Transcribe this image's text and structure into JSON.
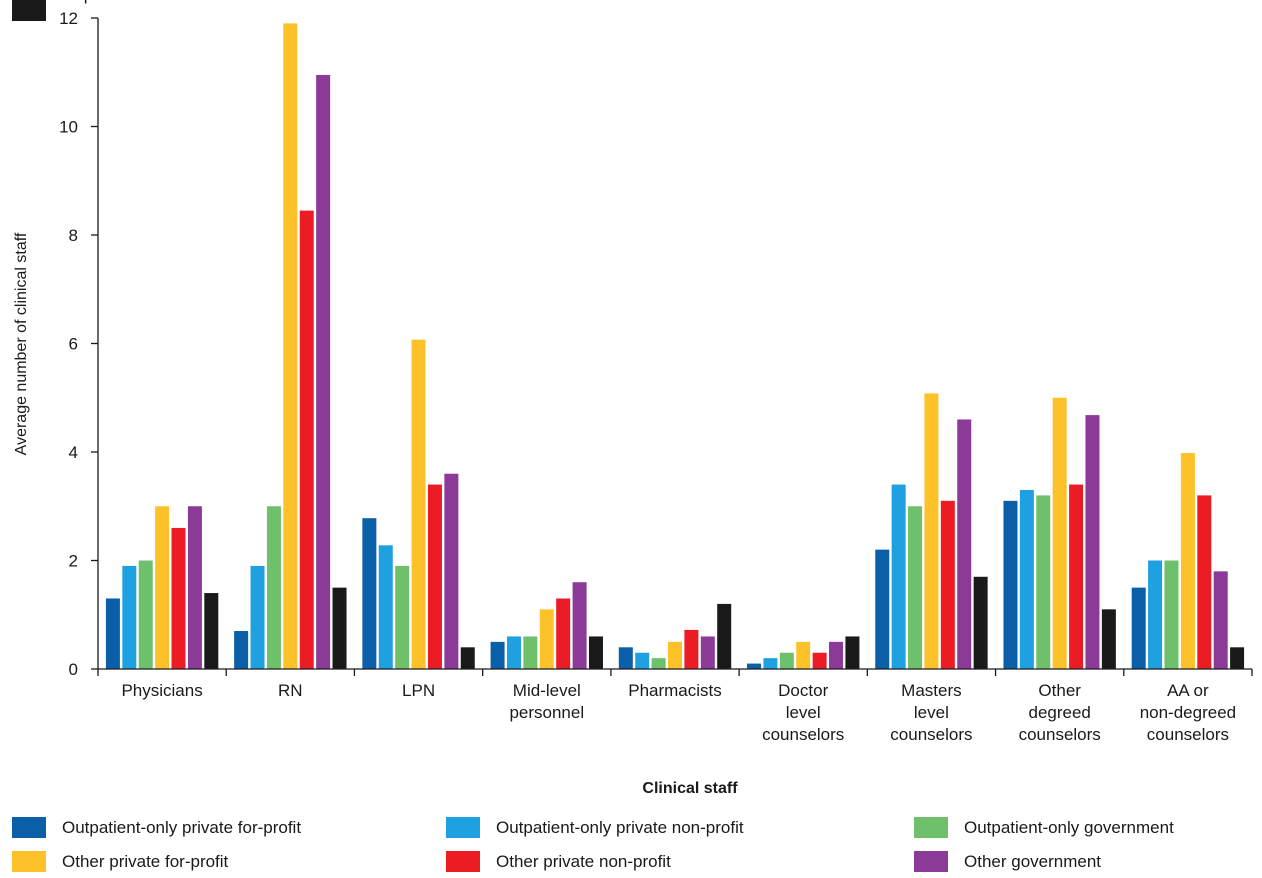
{
  "chart_data": {
    "type": "bar",
    "title": "",
    "xlabel": "Clinical staff",
    "ylabel": "Average number of clinical staff",
    "ylim": [
      0,
      12
    ],
    "yticks": [
      0,
      2,
      4,
      6,
      8,
      10,
      12
    ],
    "grid": false,
    "legend_position": "bottom",
    "categories": [
      [
        "Physicians"
      ],
      [
        "RN"
      ],
      [
        "LPN"
      ],
      [
        "Mid-level",
        "personnel"
      ],
      [
        "Pharmacists"
      ],
      [
        "Doctor",
        "level",
        "counselors"
      ],
      [
        "Masters",
        "level",
        "counselors"
      ],
      [
        "Other",
        "degreed",
        "counselors"
      ],
      [
        "AA or",
        "non-degreed",
        "counselors"
      ]
    ],
    "series": [
      {
        "name": "Outpatient-only private for-profit",
        "color": "#0a5fa8",
        "values": [
          1.3,
          0.7,
          2.78,
          0.5,
          0.4,
          0.1,
          2.2,
          3.1,
          1.5
        ]
      },
      {
        "name": "Outpatient-only private non-profit",
        "color": "#1fa0e0",
        "values": [
          1.9,
          1.9,
          2.28,
          0.6,
          0.3,
          0.2,
          3.4,
          3.3,
          2.0
        ]
      },
      {
        "name": "Outpatient-only government",
        "color": "#6fc06b",
        "values": [
          2.0,
          3.0,
          1.9,
          0.6,
          0.2,
          0.3,
          3.0,
          3.2,
          2.0
        ]
      },
      {
        "name": "Other private for-profit",
        "color": "#fdc22a",
        "values": [
          3.0,
          11.9,
          6.07,
          1.1,
          0.5,
          0.5,
          5.08,
          5.0,
          3.98
        ]
      },
      {
        "name": "Other private non-profit",
        "color": "#ec1c24",
        "values": [
          2.6,
          8.45,
          3.4,
          1.3,
          0.72,
          0.3,
          3.1,
          3.4,
          3.2
        ]
      },
      {
        "name": "Other government",
        "color": "#8c3a97",
        "values": [
          3.0,
          10.95,
          3.6,
          1.6,
          0.6,
          0.5,
          4.6,
          4.68,
          1.8
        ]
      },
      {
        "name": "Department of Veterans Affairs",
        "color": "#1a1a1a",
        "values": [
          1.4,
          1.5,
          0.4,
          0.6,
          1.2,
          0.6,
          1.7,
          1.1,
          0.4
        ]
      }
    ]
  }
}
